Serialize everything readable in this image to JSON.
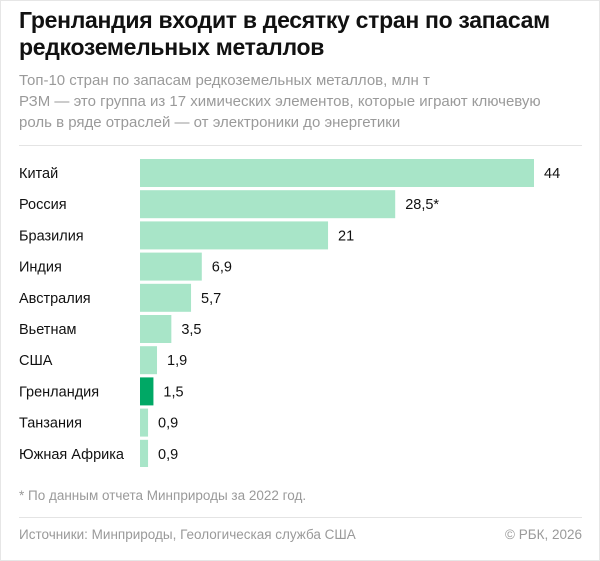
{
  "title_line1": "Гренландия входит в десятку стран по запасам",
  "title_line2": "редкоземельных металлов",
  "subtitle_lines": [
    "Топ-10 стран по запасам редкоземельных металлов, млн т",
    "РЗМ — это группа из 17 химических элементов, которые играют ключевую",
    "роль в ряде отраслей — от электроники до энергетики"
  ],
  "footnote": "* По данным отчета Минприроды за 2022 год.",
  "source": "Источники: Минприроды, Геологическая служба США",
  "copyright": "© РБК, 2026",
  "colors": {
    "bar": "#a8e5c8",
    "highlight": "#00a865"
  },
  "chart_data": {
    "type": "bar",
    "orientation": "horizontal",
    "title": "Гренландия входит в десятку стран по запасам редкоземельных металлов",
    "subtitle": "Топ-10 стран по запасам редкоземельных металлов, млн т",
    "unit": "млн т",
    "categories": [
      "Китай",
      "Россия",
      "Бразилия",
      "Индия",
      "Австралия",
      "Вьетнам",
      "США",
      "Гренландия",
      "Танзания",
      "Южная Африка"
    ],
    "values": [
      44,
      28.5,
      21,
      6.9,
      5.7,
      3.5,
      1.9,
      1.5,
      0.9,
      0.9
    ],
    "labels": [
      "44",
      "28,5*",
      "21",
      "6,9",
      "5,7",
      "3,5",
      "1,9",
      "1,5",
      "0,9",
      "0,9"
    ],
    "highlight": "Гренландия",
    "xlim": [
      0,
      44
    ],
    "grid": false,
    "legend": "none"
  }
}
